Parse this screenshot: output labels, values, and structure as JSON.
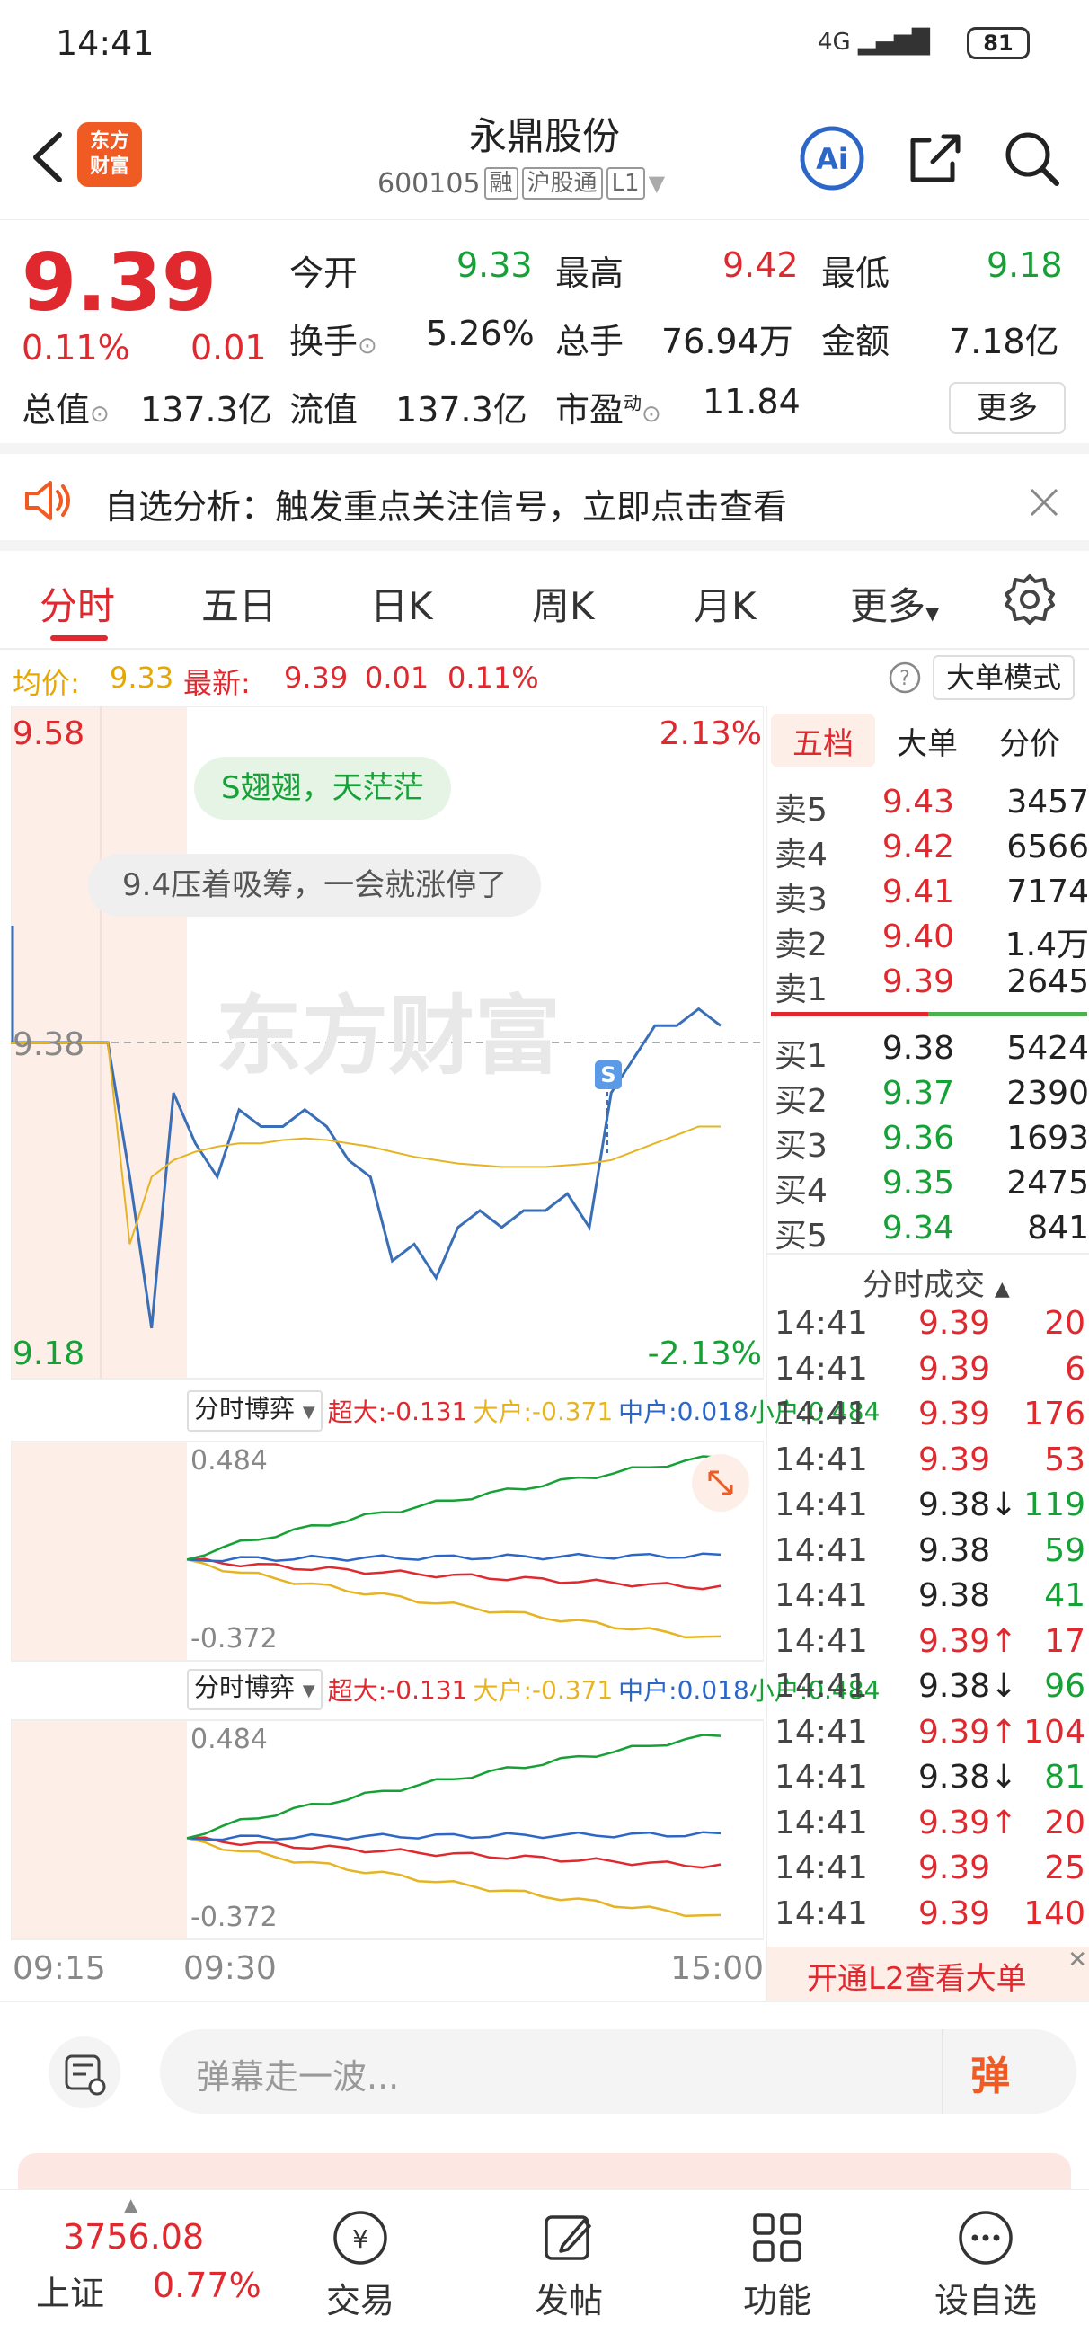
{
  "status": {
    "time": "14:41",
    "battery": "81",
    "network": "4G"
  },
  "header": {
    "logo_line1": "东方",
    "logo_line2": "财富",
    "title": "永鼎股份",
    "code": "600105",
    "tags": [
      "融",
      "沪股通",
      "L1"
    ]
  },
  "quote": {
    "price": "9.39",
    "change_pct": "0.11%",
    "change": "0.01",
    "fields": [
      {
        "label": "今开",
        "value": "9.33",
        "color": "green"
      },
      {
        "label": "最高",
        "value": "9.42",
        "color": "red"
      },
      {
        "label": "最低",
        "value": "9.18",
        "color": "green"
      },
      {
        "label": "换手",
        "value": "5.26%",
        "color": "black"
      },
      {
        "label": "总手",
        "value": "76.94万",
        "color": "black"
      },
      {
        "label": "金额",
        "value": "7.18亿",
        "color": "black"
      },
      {
        "label": "总值",
        "value": "137.3亿",
        "color": "black"
      },
      {
        "label": "流值",
        "value": "137.3亿",
        "color": "black"
      },
      {
        "label": "市盈",
        "value": "11.84",
        "color": "black"
      }
    ],
    "pe_superscript": "动",
    "more": "更多"
  },
  "notice": {
    "text": "自选分析：触发重点关注信号，立即点击查看"
  },
  "tabs": [
    "分时",
    "五日",
    "日K",
    "周K",
    "月K",
    "更多"
  ],
  "infoline": {
    "avg_label": "均价:",
    "avg_value": "9.33",
    "last_label": "最新:",
    "last_value": "9.39",
    "last_change": "0.01",
    "last_pct": "0.11%",
    "big_order_mode": "大单模式"
  },
  "chart": {
    "y_top": "9.58",
    "y_bottom": "9.18",
    "y_mid": "9.38",
    "pct_top": "2.13%",
    "pct_bottom": "-2.13%",
    "bubble1": "S翅翅，天茫茫",
    "bubble2": "9.4压着吸筹，一会就涨停了",
    "watermark": "东方财富",
    "signal": "S",
    "x_start": "09:15",
    "x_open": "09:30",
    "x_end": "15:00"
  },
  "chart_data": {
    "type": "line",
    "title": "",
    "xlabel": "",
    "ylabel": "",
    "x_ticks": [
      "09:15",
      "09:30",
      "15:00"
    ],
    "ylim": [
      9.18,
      9.58
    ],
    "reference_price": 9.38,
    "series": [
      {
        "name": "",
        "color": "#3a6fb8",
        "values": [
          9.38,
          9.38,
          9.38,
          9.3,
          9.21,
          9.35,
          9.32,
          9.3,
          9.34,
          9.33,
          9.33,
          9.34,
          9.33,
          9.31,
          9.3,
          9.25,
          9.26,
          9.24,
          9.27,
          9.28,
          9.27,
          9.28,
          9.28,
          9.29,
          9.27,
          9.35,
          9.37,
          9.39,
          9.39,
          9.4,
          9.39
        ]
      },
      {
        "name": "",
        "color": "#e6b422",
        "values": [
          9.38,
          9.38,
          9.38,
          9.26,
          9.3,
          9.31,
          9.315,
          9.318,
          9.32,
          9.32,
          9.322,
          9.323,
          9.322,
          9.32,
          9.318,
          9.315,
          9.312,
          9.31,
          9.308,
          9.307,
          9.306,
          9.306,
          9.306,
          9.307,
          9.308,
          9.31,
          9.315,
          9.32,
          9.325,
          9.33,
          9.33
        ]
      }
    ]
  },
  "game_panels": [
    {
      "selector": "分时博弈",
      "legend": [
        {
          "label": "超大:",
          "value": "-0.131",
          "color": "#e0292f"
        },
        {
          "label": "大户:",
          "value": "-0.371",
          "color": "#e6b422"
        },
        {
          "label": "中户:",
          "value": "0.018",
          "color": "#2c67c8"
        },
        {
          "label": "小户:",
          "value": "0.484",
          "color": "#16a136"
        }
      ],
      "max": "0.484",
      "min": "-0.372"
    },
    {
      "selector": "分时博弈",
      "legend": [
        {
          "label": "超大:",
          "value": "-0.131",
          "color": "#e0292f"
        },
        {
          "label": "大户:",
          "value": "-0.371",
          "color": "#e6b422"
        },
        {
          "label": "中户:",
          "value": "0.018",
          "color": "#2c67c8"
        },
        {
          "label": "小户:",
          "value": "0.484",
          "color": "#16a136"
        }
      ],
      "max": "0.484",
      "min": "-0.372"
    }
  ],
  "orderbook": {
    "tabs": [
      "五档",
      "大单",
      "分价"
    ],
    "asks": [
      {
        "label": "卖5",
        "price": "9.43",
        "vol": "3457"
      },
      {
        "label": "卖4",
        "price": "9.42",
        "vol": "6566"
      },
      {
        "label": "卖3",
        "price": "9.41",
        "vol": "7174"
      },
      {
        "label": "卖2",
        "price": "9.40",
        "vol": "1.4万"
      },
      {
        "label": "卖1",
        "price": "9.39",
        "vol": "2645"
      }
    ],
    "bids": [
      {
        "label": "买1",
        "price": "9.38",
        "vol": "5424"
      },
      {
        "label": "买2",
        "price": "9.37",
        "vol": "2390"
      },
      {
        "label": "买3",
        "price": "9.36",
        "vol": "1693"
      },
      {
        "label": "买4",
        "price": "9.35",
        "vol": "2475"
      },
      {
        "label": "买5",
        "price": "9.34",
        "vol": "841"
      }
    ],
    "trades_title": "分时成交",
    "trades": [
      {
        "time": "14:41",
        "price": "9.39",
        "arrow": "",
        "vol": "20",
        "pc": "red",
        "vc": "red"
      },
      {
        "time": "14:41",
        "price": "9.39",
        "arrow": "",
        "vol": "6",
        "pc": "red",
        "vc": "red"
      },
      {
        "time": "14:41",
        "price": "9.39",
        "arrow": "",
        "vol": "176",
        "pc": "red",
        "vc": "red"
      },
      {
        "time": "14:41",
        "price": "9.39",
        "arrow": "",
        "vol": "53",
        "pc": "red",
        "vc": "red"
      },
      {
        "time": "14:41",
        "price": "9.38",
        "arrow": "↓",
        "vol": "119",
        "pc": "black",
        "vc": "green"
      },
      {
        "time": "14:41",
        "price": "9.38",
        "arrow": "",
        "vol": "59",
        "pc": "black",
        "vc": "green"
      },
      {
        "time": "14:41",
        "price": "9.38",
        "arrow": "",
        "vol": "41",
        "pc": "black",
        "vc": "green"
      },
      {
        "time": "14:41",
        "price": "9.39",
        "arrow": "↑",
        "vol": "17",
        "pc": "red",
        "vc": "red"
      },
      {
        "time": "14:41",
        "price": "9.38",
        "arrow": "↓",
        "vol": "96",
        "pc": "black",
        "vc": "green"
      },
      {
        "time": "14:41",
        "price": "9.39",
        "arrow": "↑",
        "vol": "104",
        "pc": "red",
        "vc": "red"
      },
      {
        "time": "14:41",
        "price": "9.38",
        "arrow": "↓",
        "vol": "81",
        "pc": "black",
        "vc": "green"
      },
      {
        "time": "14:41",
        "price": "9.39",
        "arrow": "↑",
        "vol": "20",
        "pc": "red",
        "vc": "red"
      },
      {
        "time": "14:41",
        "price": "9.39",
        "arrow": "",
        "vol": "25",
        "pc": "red",
        "vc": "red"
      },
      {
        "time": "14:41",
        "price": "9.39",
        "arrow": "",
        "vol": "140",
        "pc": "red",
        "vc": "red"
      }
    ],
    "l2_promo": "开通L2查看大单"
  },
  "danmu": {
    "placeholder": "弹幕走一波...",
    "send_label": "弹"
  },
  "bottomnav": {
    "index_value": "3756.08",
    "index_name": "上证",
    "index_pct": "0.77%",
    "items": [
      "交易",
      "发帖",
      "功能",
      "设自选"
    ]
  },
  "colors": {
    "up": "#e0292f",
    "down": "#16a136",
    "accent": "#e0292f",
    "price_line": "#3a6fb8",
    "avg_line": "#e6b422"
  }
}
